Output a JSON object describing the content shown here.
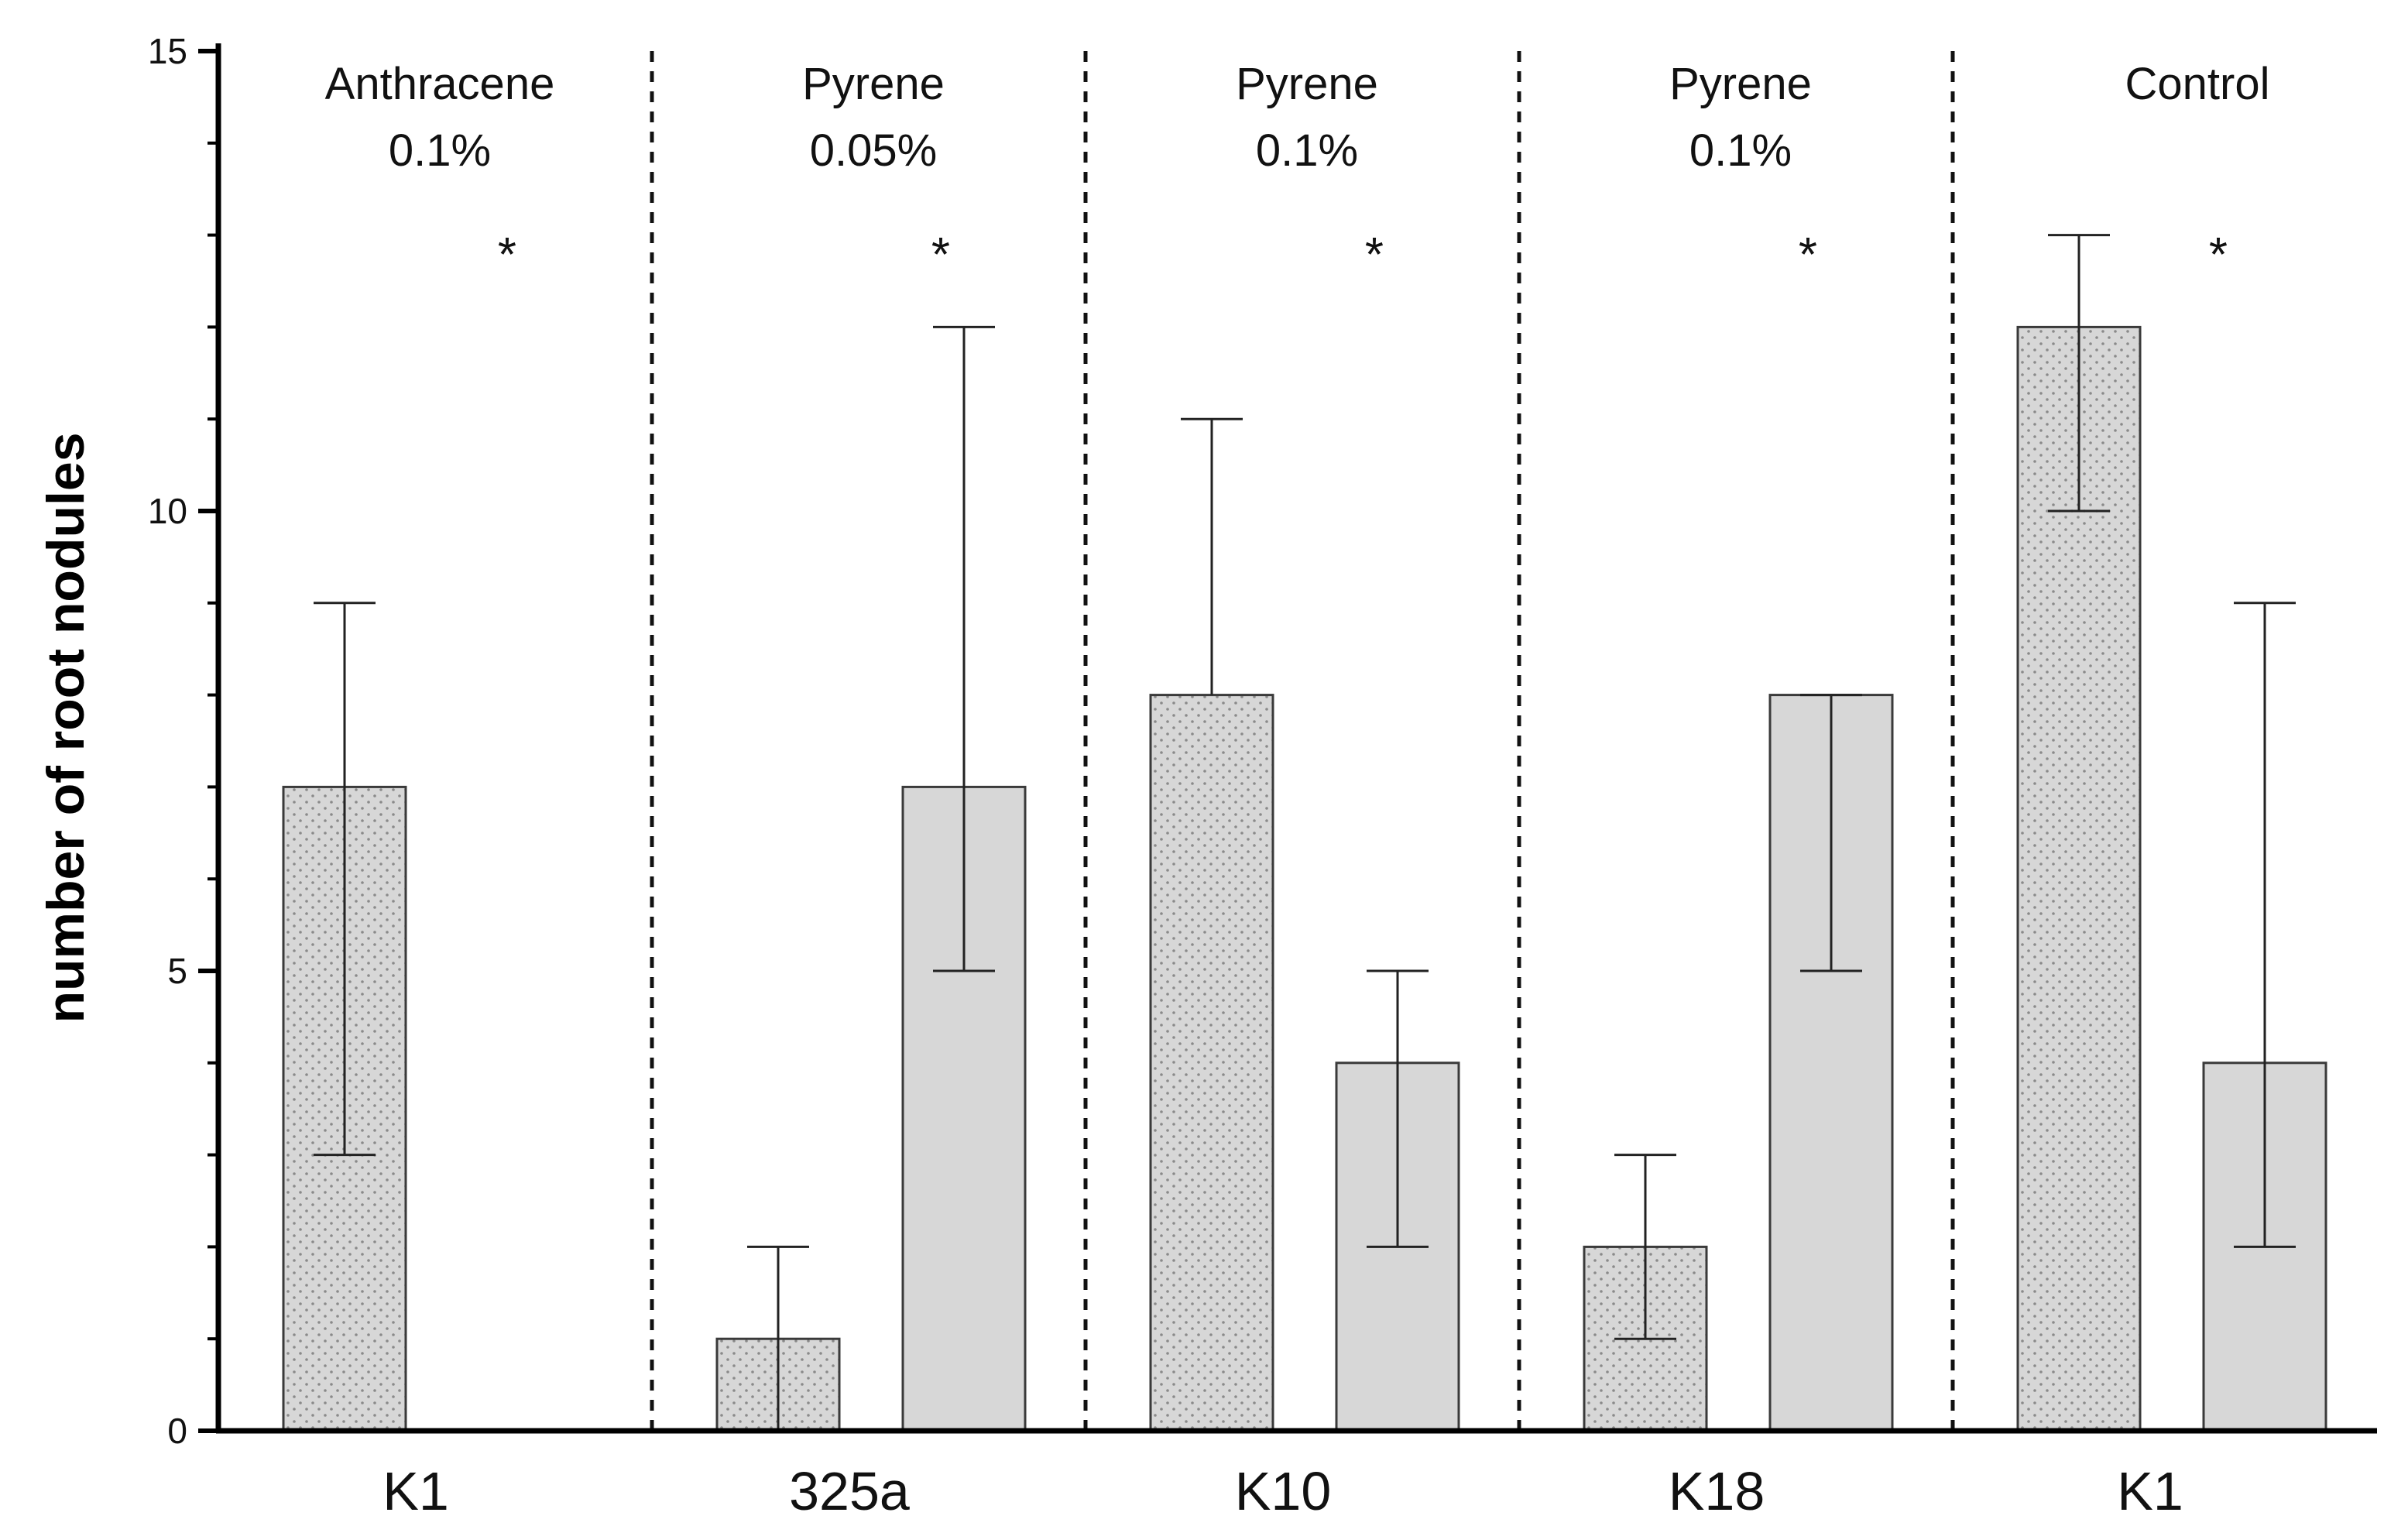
{
  "chart_data": {
    "type": "bar",
    "title": "",
    "xlabel": "",
    "ylabel": "number of root nodules",
    "ylim": [
      0,
      15
    ],
    "yticks": [
      0,
      5,
      10,
      15
    ],
    "grid": false,
    "groups": [
      {
        "category": "K1",
        "label_line1": "Anthracene",
        "label_line2": "0.1%",
        "significance": "*",
        "bars": [
          {
            "pattern": "dotted",
            "value": 7,
            "error_low": 3,
            "error_high": 9
          },
          {
            "pattern": "solid",
            "value": 0,
            "error_low": null,
            "error_high": null
          }
        ]
      },
      {
        "category": "325a",
        "label_line1": "Pyrene",
        "label_line2": "0.05%",
        "significance": "*",
        "bars": [
          {
            "pattern": "dotted",
            "value": 1,
            "error_low": 0,
            "error_high": 2
          },
          {
            "pattern": "solid",
            "value": 7,
            "error_low": 5,
            "error_high": 12
          }
        ]
      },
      {
        "category": "K10",
        "label_line1": "Pyrene",
        "label_line2": "0.1%",
        "significance": "*",
        "bars": [
          {
            "pattern": "dotted",
            "value": 8,
            "error_low": 8,
            "error_high": 11
          },
          {
            "pattern": "solid",
            "value": 4,
            "error_low": 2,
            "error_high": 5
          }
        ]
      },
      {
        "category": "K18",
        "label_line1": "Pyrene",
        "label_line2": "0.1%",
        "significance": "*",
        "bars": [
          {
            "pattern": "dotted",
            "value": 2,
            "error_low": 1,
            "error_high": 3
          },
          {
            "pattern": "solid",
            "value": 8,
            "error_low": 5,
            "error_high": 8
          }
        ]
      },
      {
        "category": "K1",
        "label_line1": "Control",
        "label_line2": "",
        "significance": "*",
        "bars": [
          {
            "pattern": "dotted",
            "value": 12,
            "error_low": 10,
            "error_high": 13
          },
          {
            "pattern": "solid",
            "value": 4,
            "error_low": 2,
            "error_high": 9
          }
        ]
      }
    ],
    "colors": {
      "bar_fill": "#d7d7d7",
      "bar_stroke": "#3a3a3a",
      "dot": "#8a8a8a",
      "axis": "#000000"
    }
  }
}
